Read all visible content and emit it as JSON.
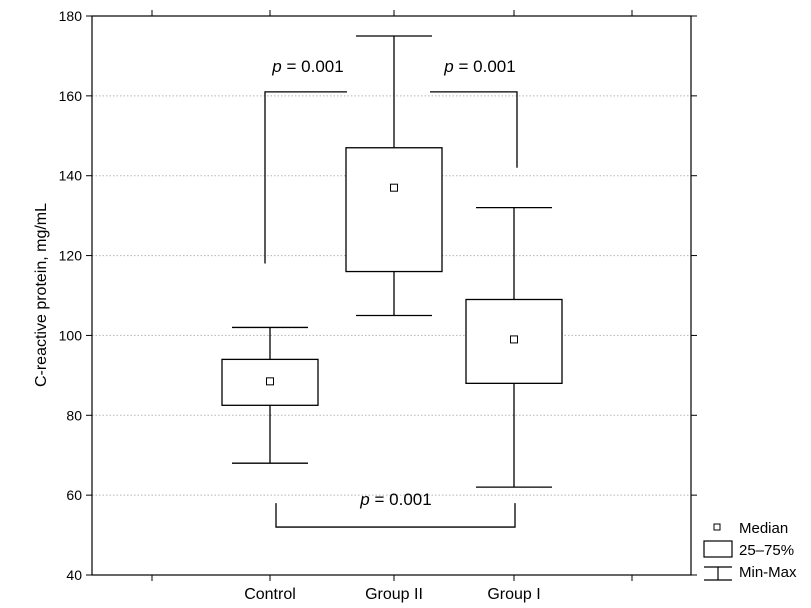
{
  "chart_data": {
    "type": "boxplot",
    "title": "",
    "xlabel": "",
    "ylabel": "C-reactive protein, mg/mL",
    "ylim": [
      40,
      180
    ],
    "yticks": [
      40,
      60,
      80,
      100,
      120,
      140,
      160,
      180
    ],
    "grid": "horizontal dotted",
    "categories": [
      "Control",
      "Group II",
      "Group I"
    ],
    "boxes": [
      {
        "category": "Control",
        "min": 68,
        "q1": 82.5,
        "median": 88.5,
        "q3": 94,
        "max": 102
      },
      {
        "category": "Group II",
        "min": 105,
        "q1": 116,
        "median": 137,
        "q3": 147,
        "max": 175
      },
      {
        "category": "Group I",
        "min": 62,
        "q1": 88,
        "median": 99,
        "q3": 109,
        "max": 132
      }
    ],
    "comparisons": [
      {
        "between": [
          "Control",
          "Group II"
        ],
        "label_p": "p",
        "label_value": " = 0.001"
      },
      {
        "between": [
          "Group II",
          "Group I"
        ],
        "label_p": "p",
        "label_value": " = 0.001"
      },
      {
        "between": [
          "Control",
          "Group I"
        ],
        "label_p": "p",
        "label_value": " = 0.001"
      }
    ],
    "legend": {
      "placement": "bottom-right",
      "items": [
        {
          "symbol": "median-square",
          "label": "Median"
        },
        {
          "symbol": "box",
          "label": "25–75%"
        },
        {
          "symbol": "whisker",
          "label": "Min-Max"
        }
      ]
    }
  }
}
